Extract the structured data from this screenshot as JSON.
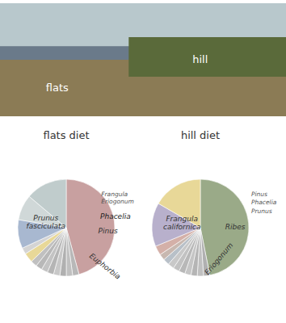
{
  "annotations": [
    "flats",
    "hill"
  ],
  "chart_data": [
    {
      "type": "pie",
      "title": "flats diet",
      "values": [
        43,
        2,
        2,
        2,
        2,
        2,
        2,
        2,
        2,
        3,
        2,
        9,
        8,
        13
      ],
      "colors": [
        "#c8a0a0",
        "#b8b8b8",
        "#c0c0c0",
        "#b0b0b0",
        "#c8c8c8",
        "#b5b5b5",
        "#c3c3c3",
        "#b8b8b8",
        "#c0c0c0",
        "#e8d898",
        "#d4d4d4",
        "#a8b8d0",
        "#d0d8d8",
        "#c0cccc"
      ],
      "annotations": [
        "Prunus\nfasciculata",
        "Frangula\nEriogonum",
        "Phacelia",
        "Pinus",
        "Euphorbia"
      ]
    },
    {
      "type": "pie",
      "title": "hill diet",
      "values": [
        45,
        2,
        2,
        2,
        2,
        2,
        2,
        2,
        2,
        2,
        3,
        14,
        16
      ],
      "colors": [
        "#9aaa88",
        "#b0b0b0",
        "#c0c0c0",
        "#b5b5b5",
        "#c5c5c5",
        "#b8b8b8",
        "#c2c2c2",
        "#c8c8c8",
        "#b8c0c8",
        "#c8b8b0",
        "#d4b0a8",
        "#b8b0cc",
        "#e8d898"
      ],
      "annotations": [
        "Frangula\ncalifornica",
        "Pinus",
        "Phacelia",
        "Prunus",
        "Ribes",
        "Eriogonum"
      ]
    }
  ]
}
